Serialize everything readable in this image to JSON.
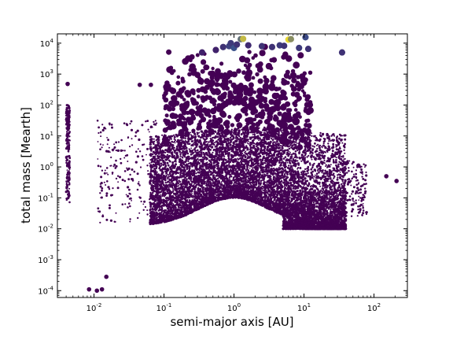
{
  "chart_data": {
    "type": "scatter",
    "xlabel": "semi-major axis [AU]",
    "ylabel": "total mass [Mearth]",
    "x_scale": "log",
    "y_scale": "log",
    "xlim": [
      0.003,
      300
    ],
    "ylim": [
      6e-05,
      20000
    ],
    "x_ticks": [
      {
        "value": 0.01,
        "base": "10",
        "exp": "-2"
      },
      {
        "value": 0.1,
        "base": "10",
        "exp": "-1"
      },
      {
        "value": 1,
        "base": "10",
        "exp": "0"
      },
      {
        "value": 10,
        "base": "10",
        "exp": "1"
      },
      {
        "value": 100,
        "base": "10",
        "exp": "2"
      }
    ],
    "y_ticks": [
      {
        "value": 0.0001,
        "base": "10",
        "exp": "-4"
      },
      {
        "value": 0.001,
        "base": "10",
        "exp": "-3"
      },
      {
        "value": 0.01,
        "base": "10",
        "exp": "-2"
      },
      {
        "value": 0.1,
        "base": "10",
        "exp": "-1"
      },
      {
        "value": 1,
        "base": "10",
        "exp": "0"
      },
      {
        "value": 10,
        "base": "10",
        "exp": "1"
      },
      {
        "value": 100,
        "base": "10",
        "exp": "2"
      },
      {
        "value": 1000,
        "base": "10",
        "exp": "3"
      },
      {
        "value": 10000,
        "base": "10",
        "exp": "4"
      }
    ],
    "grid": false,
    "marker_color_low": "#440154",
    "marker_color_mid": "#3b528b",
    "marker_color_high": "#fde725",
    "series": [
      {
        "points": [
          {
            "x": 1.25,
            "y": 13500,
            "c": 0.6
          },
          {
            "x": 1.35,
            "y": 13800,
            "c": 0.85
          },
          {
            "x": 6.0,
            "y": 13000,
            "c": 0.95
          },
          {
            "x": 6.5,
            "y": 13500,
            "c": 0.7
          },
          {
            "x": 10.5,
            "y": 15500,
            "c": 0.45
          },
          {
            "x": 0.85,
            "y": 8000,
            "c": 0.4
          },
          {
            "x": 0.9,
            "y": 10000,
            "c": 0.35
          },
          {
            "x": 1.0,
            "y": 7000,
            "c": 0.5
          },
          {
            "x": 1.1,
            "y": 9000,
            "c": 0.3
          },
          {
            "x": 0.7,
            "y": 7500,
            "c": 0.3
          },
          {
            "x": 1.6,
            "y": 8500,
            "c": 0.25
          },
          {
            "x": 2.5,
            "y": 8000,
            "c": 0.3
          },
          {
            "x": 3.5,
            "y": 7500,
            "c": 0.3
          },
          {
            "x": 4.5,
            "y": 8500,
            "c": 0.35
          },
          {
            "x": 5.2,
            "y": 8200,
            "c": 0.3
          },
          {
            "x": 8.5,
            "y": 7000,
            "c": 0.35
          },
          {
            "x": 11.5,
            "y": 6500,
            "c": 0.3
          },
          {
            "x": 35,
            "y": 5000,
            "c": 0.3
          },
          {
            "x": 0.35,
            "y": 5000,
            "c": 0.2
          },
          {
            "x": 0.55,
            "y": 6000,
            "c": 0.2
          },
          {
            "x": 0.0042,
            "y": 480,
            "c": 0.0
          },
          {
            "x": 0.045,
            "y": 450,
            "c": 0.0
          },
          {
            "x": 0.065,
            "y": 450,
            "c": 0.0
          },
          {
            "x": 0.13,
            "y": 1100,
            "c": 0.0
          },
          {
            "x": 0.015,
            "y": 0.00028,
            "c": 0.0
          },
          {
            "x": 0.011,
            "y": 0.0001,
            "c": 0.0
          },
          {
            "x": 0.0085,
            "y": 0.00011,
            "c": 0.0
          },
          {
            "x": 0.013,
            "y": 0.00011,
            "c": 0.0
          },
          {
            "x": 0.2,
            "y": 0.3,
            "c": 0.0
          },
          {
            "x": 40,
            "y": 1.3,
            "c": 0.0
          },
          {
            "x": 60,
            "y": 1.1,
            "c": 0.0
          },
          {
            "x": 150,
            "y": 0.5,
            "c": 0.0
          },
          {
            "x": 210,
            "y": 0.35,
            "c": 0.0
          }
        ]
      }
    ]
  }
}
